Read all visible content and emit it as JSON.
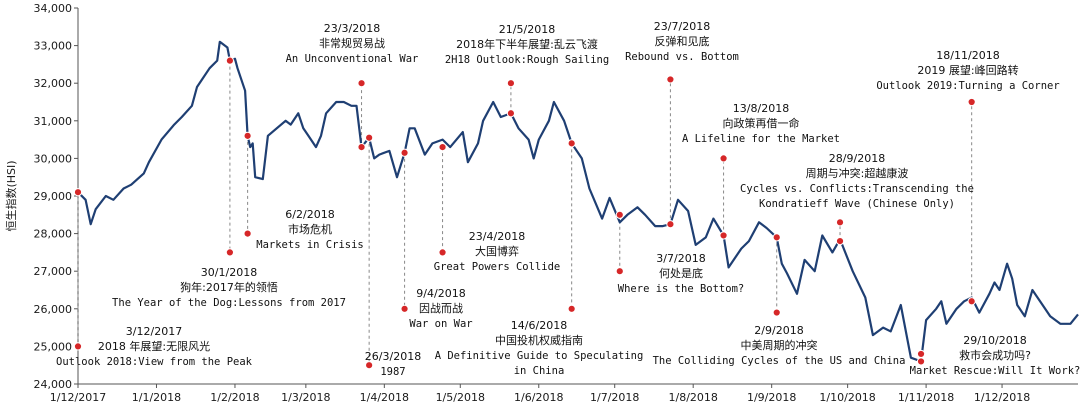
{
  "chart_data": {
    "type": "line",
    "title": "",
    "ylabel": "恒生指数(HSI)",
    "xlabel": "",
    "ylim": [
      24000,
      34000
    ],
    "xlim": [
      "2017-12-01",
      "2018-12-31"
    ],
    "grid": false,
    "yticks": [
      24000,
      25000,
      26000,
      27000,
      28000,
      29000,
      30000,
      31000,
      32000,
      33000,
      34000
    ],
    "ytick_labels": [
      "24,000",
      "25,000",
      "26,000",
      "27,000",
      "28,000",
      "29,000",
      "30,000",
      "31,000",
      "32,000",
      "33,000",
      "34,000"
    ],
    "xticks": [
      "2017-12-01",
      "2018-01-01",
      "2018-02-01",
      "2018-03-01",
      "2018-04-01",
      "2018-05-01",
      "2018-06-01",
      "2018-07-01",
      "2018-08-01",
      "2018-09-01",
      "2018-10-01",
      "2018-11-01",
      "2018-12-01"
    ],
    "xtick_labels": [
      "1/12/2017",
      "1/1/2018",
      "1/2/2018",
      "1/3/2018",
      "1/4/2018",
      "1/5/2018",
      "1/6/2018",
      "1/7/2018",
      "1/8/2018",
      "1/9/2018",
      "1/10/2018",
      "1/11/2018",
      "1/12/2018"
    ],
    "series": [
      {
        "color": "#1f3f73",
        "points": [
          [
            "2017-12-01",
            29100
          ],
          [
            "2017-12-04",
            28900
          ],
          [
            "2017-12-06",
            28250
          ],
          [
            "2017-12-08",
            28650
          ],
          [
            "2017-12-12",
            29000
          ],
          [
            "2017-12-15",
            28900
          ],
          [
            "2017-12-19",
            29200
          ],
          [
            "2017-12-22",
            29300
          ],
          [
            "2017-12-27",
            29600
          ],
          [
            "2017-12-29",
            29900
          ],
          [
            "2018-01-03",
            30500
          ],
          [
            "2018-01-08",
            30900
          ],
          [
            "2018-01-11",
            31100
          ],
          [
            "2018-01-15",
            31400
          ],
          [
            "2018-01-17",
            31900
          ],
          [
            "2018-01-19",
            32100
          ],
          [
            "2018-01-22",
            32400
          ],
          [
            "2018-01-25",
            32600
          ],
          [
            "2018-01-26",
            33100
          ],
          [
            "2018-01-29",
            32950
          ],
          [
            "2018-01-30",
            32600
          ],
          [
            "2018-02-01",
            32650
          ],
          [
            "2018-02-02",
            32400
          ],
          [
            "2018-02-05",
            31800
          ],
          [
            "2018-02-06",
            30600
          ],
          [
            "2018-02-07",
            30300
          ],
          [
            "2018-02-08",
            30400
          ],
          [
            "2018-02-09",
            29500
          ],
          [
            "2018-02-12",
            29450
          ],
          [
            "2018-02-14",
            30600
          ],
          [
            "2018-02-21",
            31000
          ],
          [
            "2018-02-23",
            30900
          ],
          [
            "2018-02-26",
            31200
          ],
          [
            "2018-02-28",
            30800
          ],
          [
            "2018-03-02",
            30600
          ],
          [
            "2018-03-05",
            30300
          ],
          [
            "2018-03-07",
            30600
          ],
          [
            "2018-03-09",
            31200
          ],
          [
            "2018-03-13",
            31500
          ],
          [
            "2018-03-16",
            31500
          ],
          [
            "2018-03-19",
            31400
          ],
          [
            "2018-03-21",
            31400
          ],
          [
            "2018-03-23",
            30300
          ],
          [
            "2018-03-26",
            30550
          ],
          [
            "2018-03-28",
            30000
          ],
          [
            "2018-03-30",
            30100
          ],
          [
            "2018-04-03",
            30200
          ],
          [
            "2018-04-06",
            29500
          ],
          [
            "2018-04-09",
            30150
          ],
          [
            "2018-04-11",
            30800
          ],
          [
            "2018-04-13",
            30800
          ],
          [
            "2018-04-17",
            30100
          ],
          [
            "2018-04-20",
            30400
          ],
          [
            "2018-04-24",
            30500
          ],
          [
            "2018-04-27",
            30300
          ],
          [
            "2018-05-02",
            30700
          ],
          [
            "2018-05-04",
            29900
          ],
          [
            "2018-05-08",
            30400
          ],
          [
            "2018-05-10",
            31000
          ],
          [
            "2018-05-14",
            31500
          ],
          [
            "2018-05-17",
            31100
          ],
          [
            "2018-05-21",
            31200
          ],
          [
            "2018-05-24",
            30800
          ],
          [
            "2018-05-28",
            30500
          ],
          [
            "2018-05-30",
            30000
          ],
          [
            "2018-06-01",
            30500
          ],
          [
            "2018-06-05",
            31000
          ],
          [
            "2018-06-07",
            31500
          ],
          [
            "2018-06-11",
            31000
          ],
          [
            "2018-06-14",
            30400
          ],
          [
            "2018-06-18",
            30000
          ],
          [
            "2018-06-21",
            29200
          ],
          [
            "2018-06-26",
            28400
          ],
          [
            "2018-06-29",
            28950
          ],
          [
            "2018-07-03",
            28300
          ],
          [
            "2018-07-06",
            28500
          ],
          [
            "2018-07-10",
            28700
          ],
          [
            "2018-07-13",
            28500
          ],
          [
            "2018-07-17",
            28200
          ],
          [
            "2018-07-20",
            28200
          ],
          [
            "2018-07-23",
            28250
          ],
          [
            "2018-07-26",
            28900
          ],
          [
            "2018-07-30",
            28600
          ],
          [
            "2018-08-02",
            27700
          ],
          [
            "2018-08-06",
            27900
          ],
          [
            "2018-08-09",
            28400
          ],
          [
            "2018-08-13",
            27950
          ],
          [
            "2018-08-15",
            27100
          ],
          [
            "2018-08-20",
            27600
          ],
          [
            "2018-08-23",
            27800
          ],
          [
            "2018-08-27",
            28300
          ],
          [
            "2018-08-30",
            28150
          ],
          [
            "2018-09-03",
            27900
          ],
          [
            "2018-09-05",
            27200
          ],
          [
            "2018-09-07",
            26950
          ],
          [
            "2018-09-11",
            26400
          ],
          [
            "2018-09-14",
            27300
          ],
          [
            "2018-09-18",
            27000
          ],
          [
            "2018-09-21",
            27950
          ],
          [
            "2018-09-25",
            27500
          ],
          [
            "2018-09-28",
            27850
          ],
          [
            "2018-10-03",
            27000
          ],
          [
            "2018-10-08",
            26300
          ],
          [
            "2018-10-11",
            25300
          ],
          [
            "2018-10-15",
            25500
          ],
          [
            "2018-10-18",
            25400
          ],
          [
            "2018-10-22",
            26100
          ],
          [
            "2018-10-26",
            24700
          ],
          [
            "2018-10-30",
            24600
          ],
          [
            "2018-11-01",
            25700
          ],
          [
            "2018-11-05",
            26000
          ],
          [
            "2018-11-07",
            26200
          ],
          [
            "2018-11-09",
            25600
          ],
          [
            "2018-11-13",
            26000
          ],
          [
            "2018-11-16",
            26200
          ],
          [
            "2018-11-19",
            26300
          ],
          [
            "2018-11-22",
            25900
          ],
          [
            "2018-11-26",
            26400
          ],
          [
            "2018-11-28",
            26700
          ],
          [
            "2018-11-30",
            26500
          ],
          [
            "2018-12-03",
            27200
          ],
          [
            "2018-12-05",
            26800
          ],
          [
            "2018-12-07",
            26100
          ],
          [
            "2018-12-10",
            25800
          ],
          [
            "2018-12-13",
            26500
          ],
          [
            "2018-12-17",
            26100
          ],
          [
            "2018-12-20",
            25800
          ],
          [
            "2018-12-24",
            25600
          ],
          [
            "2018-12-28",
            25600
          ],
          [
            "2018-12-31",
            25850
          ]
        ]
      }
    ],
    "annotations": [
      {
        "date": "2017-12-01",
        "y1": 29100,
        "y2": 25000,
        "lines": [
          "3/12/2017",
          "2018 年展望:无限风光",
          "Outlook 2018:View from the Peak"
        ]
      },
      {
        "date": "2018-01-30",
        "y1": 32600,
        "y2": 27500,
        "lines": [
          "30/1/2018",
          "狗年:2017年的领悟",
          "The Year of the Dog:Lessons from 2017"
        ]
      },
      {
        "date": "2018-02-06",
        "y1": 30600,
        "y2": 28000,
        "lines": [
          "6/2/2018",
          "市场危机",
          "Markets in Crisis"
        ]
      },
      {
        "date": "2018-03-23",
        "y1": 30300,
        "y2": 32000,
        "lines": [
          "23/3/2018",
          "非常规贸易战",
          "An Unconventional War"
        ]
      },
      {
        "date": "2018-03-26",
        "y1": 30550,
        "y2": 24500,
        "lines": [
          "26/3/2018",
          "1987"
        ]
      },
      {
        "date": "2018-04-09",
        "y1": 30150,
        "y2": 26000,
        "lines": [
          "9/4/2018",
          "因战而战",
          "War on War"
        ]
      },
      {
        "date": "2018-04-24",
        "y1": 30300,
        "y2": 27500,
        "lines": [
          "23/4/2018",
          "大国博弈",
          "Great Powers Collide"
        ]
      },
      {
        "date": "2018-05-21",
        "y1": 31200,
        "y2": 32000,
        "lines": [
          "21/5/2018",
          "2018年下半年展望:乱云飞渡",
          "2H18 Outlook:Rough Sailing"
        ]
      },
      {
        "date": "2018-06-14",
        "y1": 30400,
        "y2": 26000,
        "lines": [
          "14/6/2018",
          "中国投机权威指南",
          "A Definitive Guide to Speculating",
          "in China"
        ]
      },
      {
        "date": "2018-07-03",
        "y1": 28500,
        "y2": 27000,
        "lines": [
          "3/7/2018",
          "何处是底",
          "Where is the Bottom?"
        ]
      },
      {
        "date": "2018-07-23",
        "y1": 28250,
        "y2": 32100,
        "lines": [
          "23/7/2018",
          "反弹和见底",
          "Rebound vs. Bottom"
        ]
      },
      {
        "date": "2018-08-13",
        "y1": 27950,
        "y2": 30000,
        "lines": [
          "13/8/2018",
          "向政策再借一命",
          "A Lifeline for the Market"
        ]
      },
      {
        "date": "2018-09-03",
        "y1": 27900,
        "y2": 25900,
        "lines": [
          "2/9/2018",
          "中美周期的冲突",
          "The Colliding Cycles of the US and China"
        ]
      },
      {
        "date": "2018-09-28",
        "y1": 27800,
        "y2": 28300,
        "lines": [
          "28/9/2018",
          "周期与冲突:超越康波",
          "Cycles vs. Conflicts:Transcending the",
          "Kondratieff Wave (Chinese Only)"
        ]
      },
      {
        "date": "2018-10-30",
        "y1": 24800,
        "y2": 24600,
        "lines": [
          "29/10/2018",
          "救市会成功吗?",
          "Market Rescue:Will It Work?"
        ]
      },
      {
        "date": "2018-11-19",
        "y1": 26200,
        "y2": 31500,
        "lines": [
          "18/11/2018",
          "2019 展望:峰回路转",
          "Outlook 2019:Turning a Corner"
        ]
      }
    ]
  }
}
